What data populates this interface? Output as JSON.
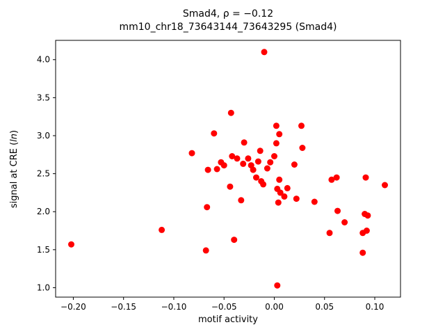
{
  "chart_data": {
    "type": "scatter",
    "title_line1": "Smad4, ρ = −0.12",
    "title_line2": "mm10_chr18_73643144_73643295 (Smad4)",
    "xlabel": "motif activity",
    "ylabel_prefix": "signal at CRE (",
    "ylabel_italic": "ln",
    "ylabel_suffix": ")",
    "marker_color": "#ff0000",
    "marker_radius": 4.5,
    "xlim": [
      -0.2176,
      0.1256
    ],
    "ylim": [
      0.876,
      4.254
    ],
    "xticks": [
      -0.2,
      -0.15,
      -0.1,
      -0.05,
      0.0,
      0.05,
      0.1
    ],
    "xtick_labels": [
      "−0.20",
      "−0.15",
      "−0.10",
      "−0.05",
      "0.00",
      "0.05",
      "0.10"
    ],
    "yticks": [
      1.0,
      1.5,
      2.0,
      2.5,
      3.0,
      3.5,
      4.0
    ],
    "ytick_labels": [
      "1.0",
      "1.5",
      "2.0",
      "2.5",
      "3.0",
      "3.5",
      "4.0"
    ],
    "grid": false,
    "legend": "none",
    "points": [
      [
        -0.202,
        1.57
      ],
      [
        -0.112,
        1.76
      ],
      [
        -0.082,
        2.77
      ],
      [
        -0.068,
        1.49
      ],
      [
        -0.067,
        2.06
      ],
      [
        -0.066,
        2.55
      ],
      [
        -0.06,
        3.03
      ],
      [
        -0.057,
        2.56
      ],
      [
        -0.053,
        2.65
      ],
      [
        -0.05,
        2.61
      ],
      [
        -0.044,
        2.33
      ],
      [
        -0.043,
        3.3
      ],
      [
        -0.042,
        2.73
      ],
      [
        -0.04,
        1.63
      ],
      [
        -0.037,
        2.7
      ],
      [
        -0.033,
        2.15
      ],
      [
        -0.031,
        2.63
      ],
      [
        -0.03,
        2.91
      ],
      [
        -0.026,
        2.7
      ],
      [
        -0.023,
        2.61
      ],
      [
        -0.021,
        2.55
      ],
      [
        -0.018,
        2.45
      ],
      [
        -0.016,
        2.66
      ],
      [
        -0.014,
        2.8
      ],
      [
        -0.013,
        2.4
      ],
      [
        -0.011,
        2.36
      ],
      [
        -0.01,
        4.1
      ],
      [
        -0.007,
        2.57
      ],
      [
        -0.004,
        2.65
      ],
      [
        0.0,
        2.73
      ],
      [
        0.002,
        3.13
      ],
      [
        0.002,
        2.9
      ],
      [
        0.003,
        2.3
      ],
      [
        0.003,
        1.03
      ],
      [
        0.004,
        2.12
      ],
      [
        0.005,
        2.42
      ],
      [
        0.005,
        3.02
      ],
      [
        0.006,
        2.25
      ],
      [
        0.01,
        2.2
      ],
      [
        0.013,
        2.31
      ],
      [
        0.02,
        2.62
      ],
      [
        0.022,
        2.17
      ],
      [
        0.027,
        3.13
      ],
      [
        0.028,
        2.84
      ],
      [
        0.04,
        2.13
      ],
      [
        0.055,
        1.72
      ],
      [
        0.057,
        2.42
      ],
      [
        0.062,
        2.45
      ],
      [
        0.063,
        2.01
      ],
      [
        0.07,
        1.86
      ],
      [
        0.088,
        1.46
      ],
      [
        0.088,
        1.72
      ],
      [
        0.09,
        1.97
      ],
      [
        0.091,
        2.45
      ],
      [
        0.092,
        1.75
      ],
      [
        0.093,
        1.95
      ],
      [
        0.11,
        2.35
      ]
    ]
  }
}
